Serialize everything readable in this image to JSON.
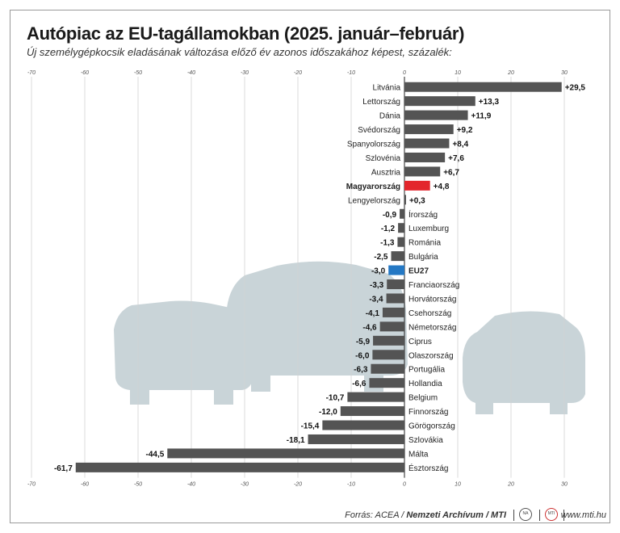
{
  "title": "Autópiac az EU-tagállamokban (2025. január–február)",
  "subtitle": "Új személygépkocsik eladásának változása előző év azonos időszakához képest, százalék:",
  "source_prefix": "Forrás: ACEA / ",
  "source_main": "Nemzeti Archívum / MTI",
  "site": "www.mti.hu",
  "logos": {
    "archive": "NA",
    "mti": "MTI"
  },
  "colors": {
    "default": "#545454",
    "highlight": "#e3262c",
    "eu": "#2478c4",
    "cars": "#c9d4d8"
  },
  "chart_data": {
    "type": "bar",
    "orientation": "horizontal",
    "title": "Autópiac az EU-tagállamokban (2025. január–február)",
    "subtitle": "Új személygépkocsik eladásának változása előző év azonos időszakához képest, százalék:",
    "xlim": [
      -70,
      30
    ],
    "xticks": [
      -70,
      -60,
      -50,
      -40,
      -30,
      -20,
      -10,
      0,
      10,
      20,
      30
    ],
    "xticklabels": [
      "-70",
      "-60",
      "-50",
      "-40",
      "-30",
      "-20",
      "-10",
      "0",
      "10",
      "20",
      "30"
    ],
    "grid": true,
    "categories": [
      "Litvánia",
      "Lettország",
      "Dánia",
      "Svédország",
      "Spanyolország",
      "Szlovénia",
      "Ausztria",
      "Magyarország",
      "Lengyelország",
      "Írország",
      "Luxemburg",
      "Románia",
      "Bulgária",
      "EU27",
      "Franciaország",
      "Horvátország",
      "Csehország",
      "Németország",
      "Ciprus",
      "Olaszország",
      "Portugália",
      "Hollandia",
      "Belgium",
      "Finnország",
      "Görögország",
      "Szlovákia",
      "Málta",
      "Észtország"
    ],
    "values": [
      29.5,
      13.3,
      11.9,
      9.2,
      8.4,
      7.6,
      6.7,
      4.8,
      0.3,
      -0.9,
      -1.2,
      -1.3,
      -2.5,
      -3.0,
      -3.3,
      -3.4,
      -4.1,
      -4.6,
      -5.9,
      -6.0,
      -6.3,
      -6.6,
      -10.7,
      -12.0,
      -15.4,
      -18.1,
      -44.5,
      -61.7
    ],
    "value_labels": [
      "+29,5",
      "+13,3",
      "+11,9",
      "+9,2",
      "+8,4",
      "+7,6",
      "+6,7",
      "+4,8",
      "+0,3",
      "-0,9",
      "-1,2",
      "-1,3",
      "-2,5",
      "-3,0",
      "-3,3",
      "-3,4",
      "-4,1",
      "-4,6",
      "-5,9",
      "-6,0",
      "-6,3",
      "-6,6",
      "-10,7",
      "-12,0",
      "-15,4",
      "-18,1",
      "-44,5",
      "-61,7"
    ],
    "highlight": {
      "Magyarország": "red",
      "EU27": "blue"
    },
    "bold_labels": [
      "Magyarország",
      "EU27"
    ]
  }
}
